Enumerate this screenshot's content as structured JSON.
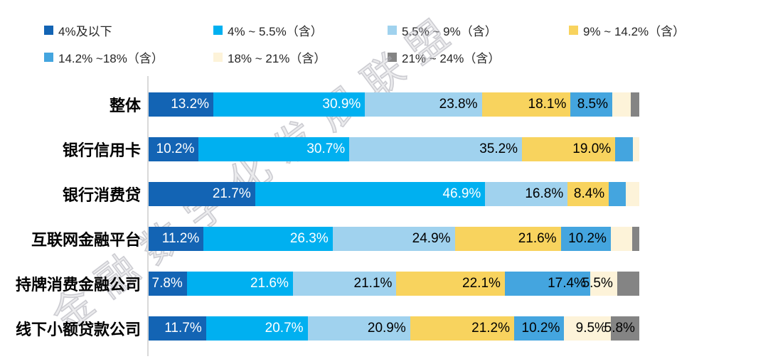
{
  "watermark": {
    "text": "金融数字化发展联盟"
  },
  "chart_data": {
    "type": "bar",
    "orientation": "horizontal_stacked",
    "unit": "%",
    "xlim": [
      0,
      100
    ],
    "grid": false,
    "legend_position": "top",
    "label_threshold_pct": 5,
    "label_format": "one_decimal_percent",
    "series": [
      {
        "name": "4%及以下",
        "color": "#1364B4",
        "text_color": "#FFFFFF"
      },
      {
        "name": "4% ~ 5.5%（含）",
        "color": "#00B0F0",
        "text_color": "#FFFFFF"
      },
      {
        "name": "5.5% ~ 9%（含）",
        "color": "#A0D2EE",
        "text_color": "#000000"
      },
      {
        "name": "9% ~ 14.2%（含）",
        "color": "#F8D35E",
        "text_color": "#000000"
      },
      {
        "name": "14.2% ~18%（含）",
        "color": "#44A5DF",
        "text_color": "#000000"
      },
      {
        "name": "18% ~ 21%（含）",
        "color": "#FDF3D9",
        "text_color": "#000000"
      },
      {
        "name": "21% ~ 24%（含）",
        "color": "#848484",
        "text_color": "#000000"
      }
    ],
    "categories": [
      "整体",
      "银行信用卡",
      "银行消费贷",
      "互联网金融平台",
      "持牌消费金融公司",
      "线下小额贷款公司"
    ],
    "rows": [
      {
        "category": "整体",
        "values": [
          13.2,
          30.9,
          23.8,
          18.1,
          8.5,
          3.7,
          1.8
        ]
      },
      {
        "category": "银行信用卡",
        "values": [
          10.2,
          30.7,
          35.2,
          19.0,
          3.6,
          1.3,
          0
        ]
      },
      {
        "category": "银行消费贷",
        "values": [
          21.7,
          46.9,
          16.8,
          8.4,
          3.4,
          2.8,
          0
        ]
      },
      {
        "category": "互联网金融平台",
        "values": [
          11.2,
          26.3,
          24.9,
          21.6,
          10.2,
          4.3,
          1.5
        ]
      },
      {
        "category": "持牌消费金融公司",
        "values": [
          7.8,
          21.6,
          21.1,
          22.1,
          17.4,
          5.5,
          4.5
        ]
      },
      {
        "category": "线下小额贷款公司",
        "values": [
          11.7,
          20.7,
          20.9,
          21.2,
          10.2,
          9.5,
          5.8
        ]
      }
    ]
  }
}
